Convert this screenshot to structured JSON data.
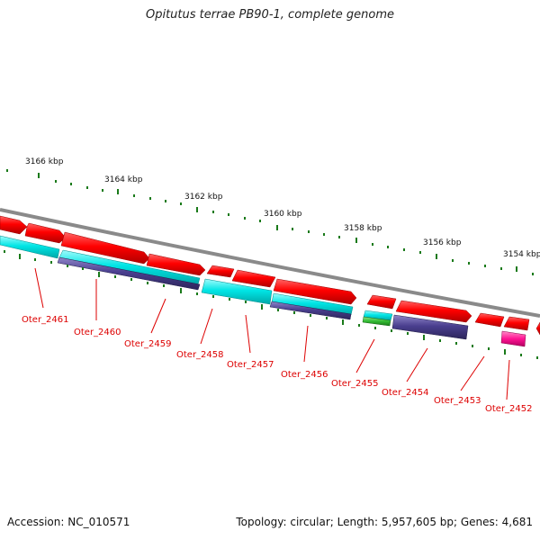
{
  "title": "Opitutus terrae PB90-1, complete genome",
  "footer": {
    "accession": "Accession: NC_010571",
    "summary": "Topology: circular; Length: 5,957,605 bp; Genes: 4,681"
  },
  "colors": {
    "background": "#ffffff",
    "backbone": "#8a8a8a",
    "tick": "#1a7a1a",
    "forward_gene": "#ff0000",
    "reverse_gene": "#00e5e5",
    "second_track": "#4a3f8f",
    "green_feature": "#33bb33",
    "magenta_feature": "#ff1493",
    "label": "#dd0000",
    "scale_label": "#111111"
  },
  "scale_labels": [
    "3166 kbp",
    "3164 kbp",
    "3162 kbp",
    "3160 kbp",
    "3158 kbp",
    "3156 kbp",
    "3154 kbp"
  ],
  "gene_labels": [
    "Oter_2461",
    "Oter_2460",
    "Oter_2459",
    "Oter_2458",
    "Oter_2457",
    "Oter_2456",
    "Oter_2455",
    "Oter_2454",
    "Oter_2453",
    "Oter_2452"
  ]
}
